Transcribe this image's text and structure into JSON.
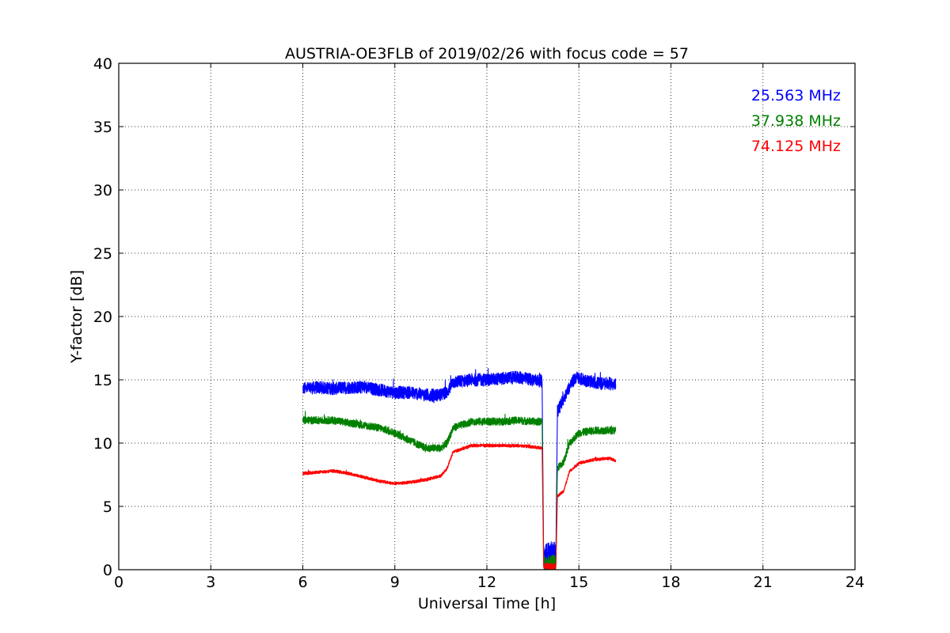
{
  "chart_data": {
    "type": "line",
    "title": "AUSTRIA-OE3FLB of 2019/02/26 with focus code = 57",
    "xlabel": "Universal Time [h]",
    "ylabel": "Y-factor [dB]",
    "xlim": [
      0,
      24
    ],
    "ylim": [
      0,
      40
    ],
    "xticks": [
      0,
      3,
      6,
      9,
      12,
      15,
      18,
      21,
      24
    ],
    "yticks": [
      0,
      5,
      10,
      15,
      20,
      25,
      30,
      35,
      40
    ],
    "grid": true,
    "legend_position": "top-right",
    "series": [
      {
        "name": "25.563 MHz",
        "color": "#0000ff",
        "noise": 0.5,
        "points": [
          [
            6.0,
            14.3
          ],
          [
            6.5,
            14.4
          ],
          [
            7.0,
            14.3
          ],
          [
            7.5,
            14.4
          ],
          [
            8.0,
            14.4
          ],
          [
            8.5,
            14.2
          ],
          [
            9.0,
            14.0
          ],
          [
            9.5,
            14.0
          ],
          [
            10.0,
            13.8
          ],
          [
            10.5,
            13.8
          ],
          [
            10.7,
            14.0
          ],
          [
            10.9,
            14.8
          ],
          [
            11.5,
            15.0
          ],
          [
            12.0,
            15.0
          ],
          [
            12.5,
            15.1
          ],
          [
            13.0,
            15.2
          ],
          [
            13.5,
            15.0
          ],
          [
            13.8,
            14.9
          ],
          [
            13.85,
            1.0
          ],
          [
            14.25,
            1.2
          ],
          [
            14.3,
            12.5
          ],
          [
            14.5,
            13.5
          ],
          [
            14.7,
            14.5
          ],
          [
            14.9,
            15.2
          ],
          [
            15.3,
            14.9
          ],
          [
            15.7,
            14.7
          ],
          [
            16.0,
            14.7
          ],
          [
            16.2,
            14.6
          ]
        ]
      },
      {
        "name": "37.938 MHz",
        "color": "#008000",
        "noise": 0.3,
        "points": [
          [
            6.0,
            11.8
          ],
          [
            6.5,
            11.8
          ],
          [
            7.0,
            11.8
          ],
          [
            7.5,
            11.6
          ],
          [
            8.0,
            11.4
          ],
          [
            8.5,
            11.2
          ],
          [
            9.0,
            10.8
          ],
          [
            9.5,
            10.2
          ],
          [
            10.0,
            9.6
          ],
          [
            10.5,
            9.6
          ],
          [
            10.7,
            10.0
          ],
          [
            10.9,
            11.2
          ],
          [
            11.5,
            11.7
          ],
          [
            12.0,
            11.7
          ],
          [
            12.5,
            11.7
          ],
          [
            13.0,
            11.8
          ],
          [
            13.5,
            11.7
          ],
          [
            13.8,
            11.7
          ],
          [
            13.85,
            0.5
          ],
          [
            14.25,
            0.5
          ],
          [
            14.3,
            8.0
          ],
          [
            14.5,
            8.5
          ],
          [
            14.7,
            10.0
          ],
          [
            15.0,
            10.8
          ],
          [
            15.5,
            11.0
          ],
          [
            16.0,
            11.0
          ],
          [
            16.2,
            11.0
          ]
        ]
      },
      {
        "name": "74.125 MHz",
        "color": "#ff0000",
        "noise": 0.12,
        "points": [
          [
            6.0,
            7.6
          ],
          [
            6.5,
            7.7
          ],
          [
            7.0,
            7.8
          ],
          [
            7.5,
            7.6
          ],
          [
            8.0,
            7.3
          ],
          [
            8.5,
            7.0
          ],
          [
            9.0,
            6.8
          ],
          [
            9.5,
            6.9
          ],
          [
            10.0,
            7.1
          ],
          [
            10.5,
            7.4
          ],
          [
            10.7,
            8.0
          ],
          [
            10.9,
            9.3
          ],
          [
            11.5,
            9.8
          ],
          [
            12.0,
            9.8
          ],
          [
            12.5,
            9.8
          ],
          [
            13.0,
            9.8
          ],
          [
            13.5,
            9.7
          ],
          [
            13.8,
            9.6
          ],
          [
            13.85,
            0.3
          ],
          [
            14.25,
            0.2
          ],
          [
            14.3,
            5.8
          ],
          [
            14.5,
            6.2
          ],
          [
            14.7,
            7.8
          ],
          [
            15.0,
            8.4
          ],
          [
            15.5,
            8.7
          ],
          [
            16.0,
            8.8
          ],
          [
            16.2,
            8.6
          ]
        ]
      }
    ]
  }
}
